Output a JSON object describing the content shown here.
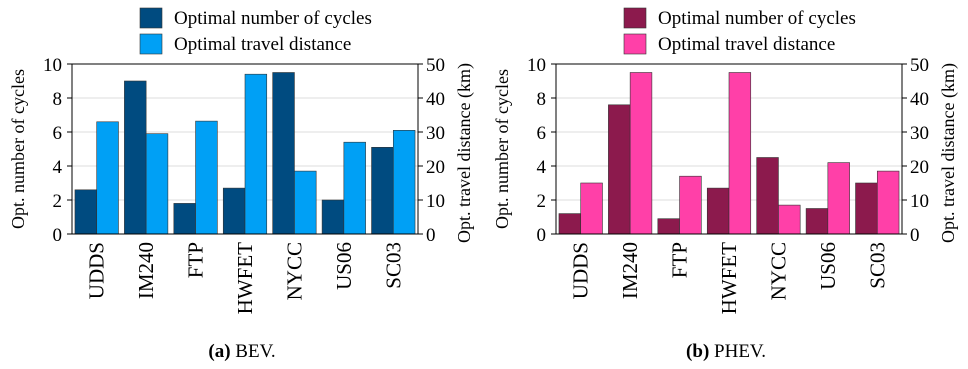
{
  "chart_data": [
    {
      "type": "bar",
      "caption_label": "(a)",
      "caption_text": "BEV.",
      "categories": [
        "UDDS",
        "IM240",
        "FTP",
        "HWFET",
        "NYCC",
        "US06",
        "SC03"
      ],
      "series": [
        {
          "name": "Optimal number of cycles",
          "axis": "left",
          "color": "#004b80",
          "values": [
            2.6,
            9.0,
            1.8,
            2.7,
            9.5,
            2.0,
            5.1
          ]
        },
        {
          "name": "Optimal travel distance",
          "axis": "right",
          "color": "#00a0f5",
          "values": [
            33,
            29.5,
            33.2,
            47,
            18.5,
            27,
            30.5
          ]
        }
      ],
      "ylabel": "Opt. number of cycles",
      "ylabel_right": "Opt. travel distance (km)",
      "ylim": [
        0,
        10
      ],
      "ylim_right": [
        0,
        50
      ],
      "yticks": [
        "0",
        "2",
        "4",
        "6",
        "8",
        "10"
      ],
      "yticks_right": [
        "0",
        "10",
        "20",
        "30",
        "40",
        "50"
      ],
      "grid": true,
      "legend_position": "top"
    },
    {
      "type": "bar",
      "caption_label": "(b)",
      "caption_text": "PHEV.",
      "categories": [
        "UDDS",
        "IM240",
        "FTP",
        "HWFET",
        "NYCC",
        "US06",
        "SC03"
      ],
      "series": [
        {
          "name": "Optimal number of cycles",
          "axis": "left",
          "color": "#8c1a4d",
          "values": [
            1.2,
            7.6,
            0.9,
            2.7,
            4.5,
            1.5,
            3.0
          ]
        },
        {
          "name": "Optimal travel distance",
          "axis": "right",
          "color": "#ff40a8",
          "values": [
            15,
            47.5,
            17,
            47.5,
            8.5,
            21,
            18.5
          ]
        }
      ],
      "ylabel": "Opt. number of cycles",
      "ylabel_right": "Opt. travel distance (km)",
      "ylim": [
        0,
        10
      ],
      "ylim_right": [
        0,
        50
      ],
      "yticks": [
        "0",
        "2",
        "4",
        "6",
        "8",
        "10"
      ],
      "yticks_right": [
        "0",
        "10",
        "20",
        "30",
        "40",
        "50"
      ],
      "grid": true,
      "legend_position": "top"
    }
  ]
}
